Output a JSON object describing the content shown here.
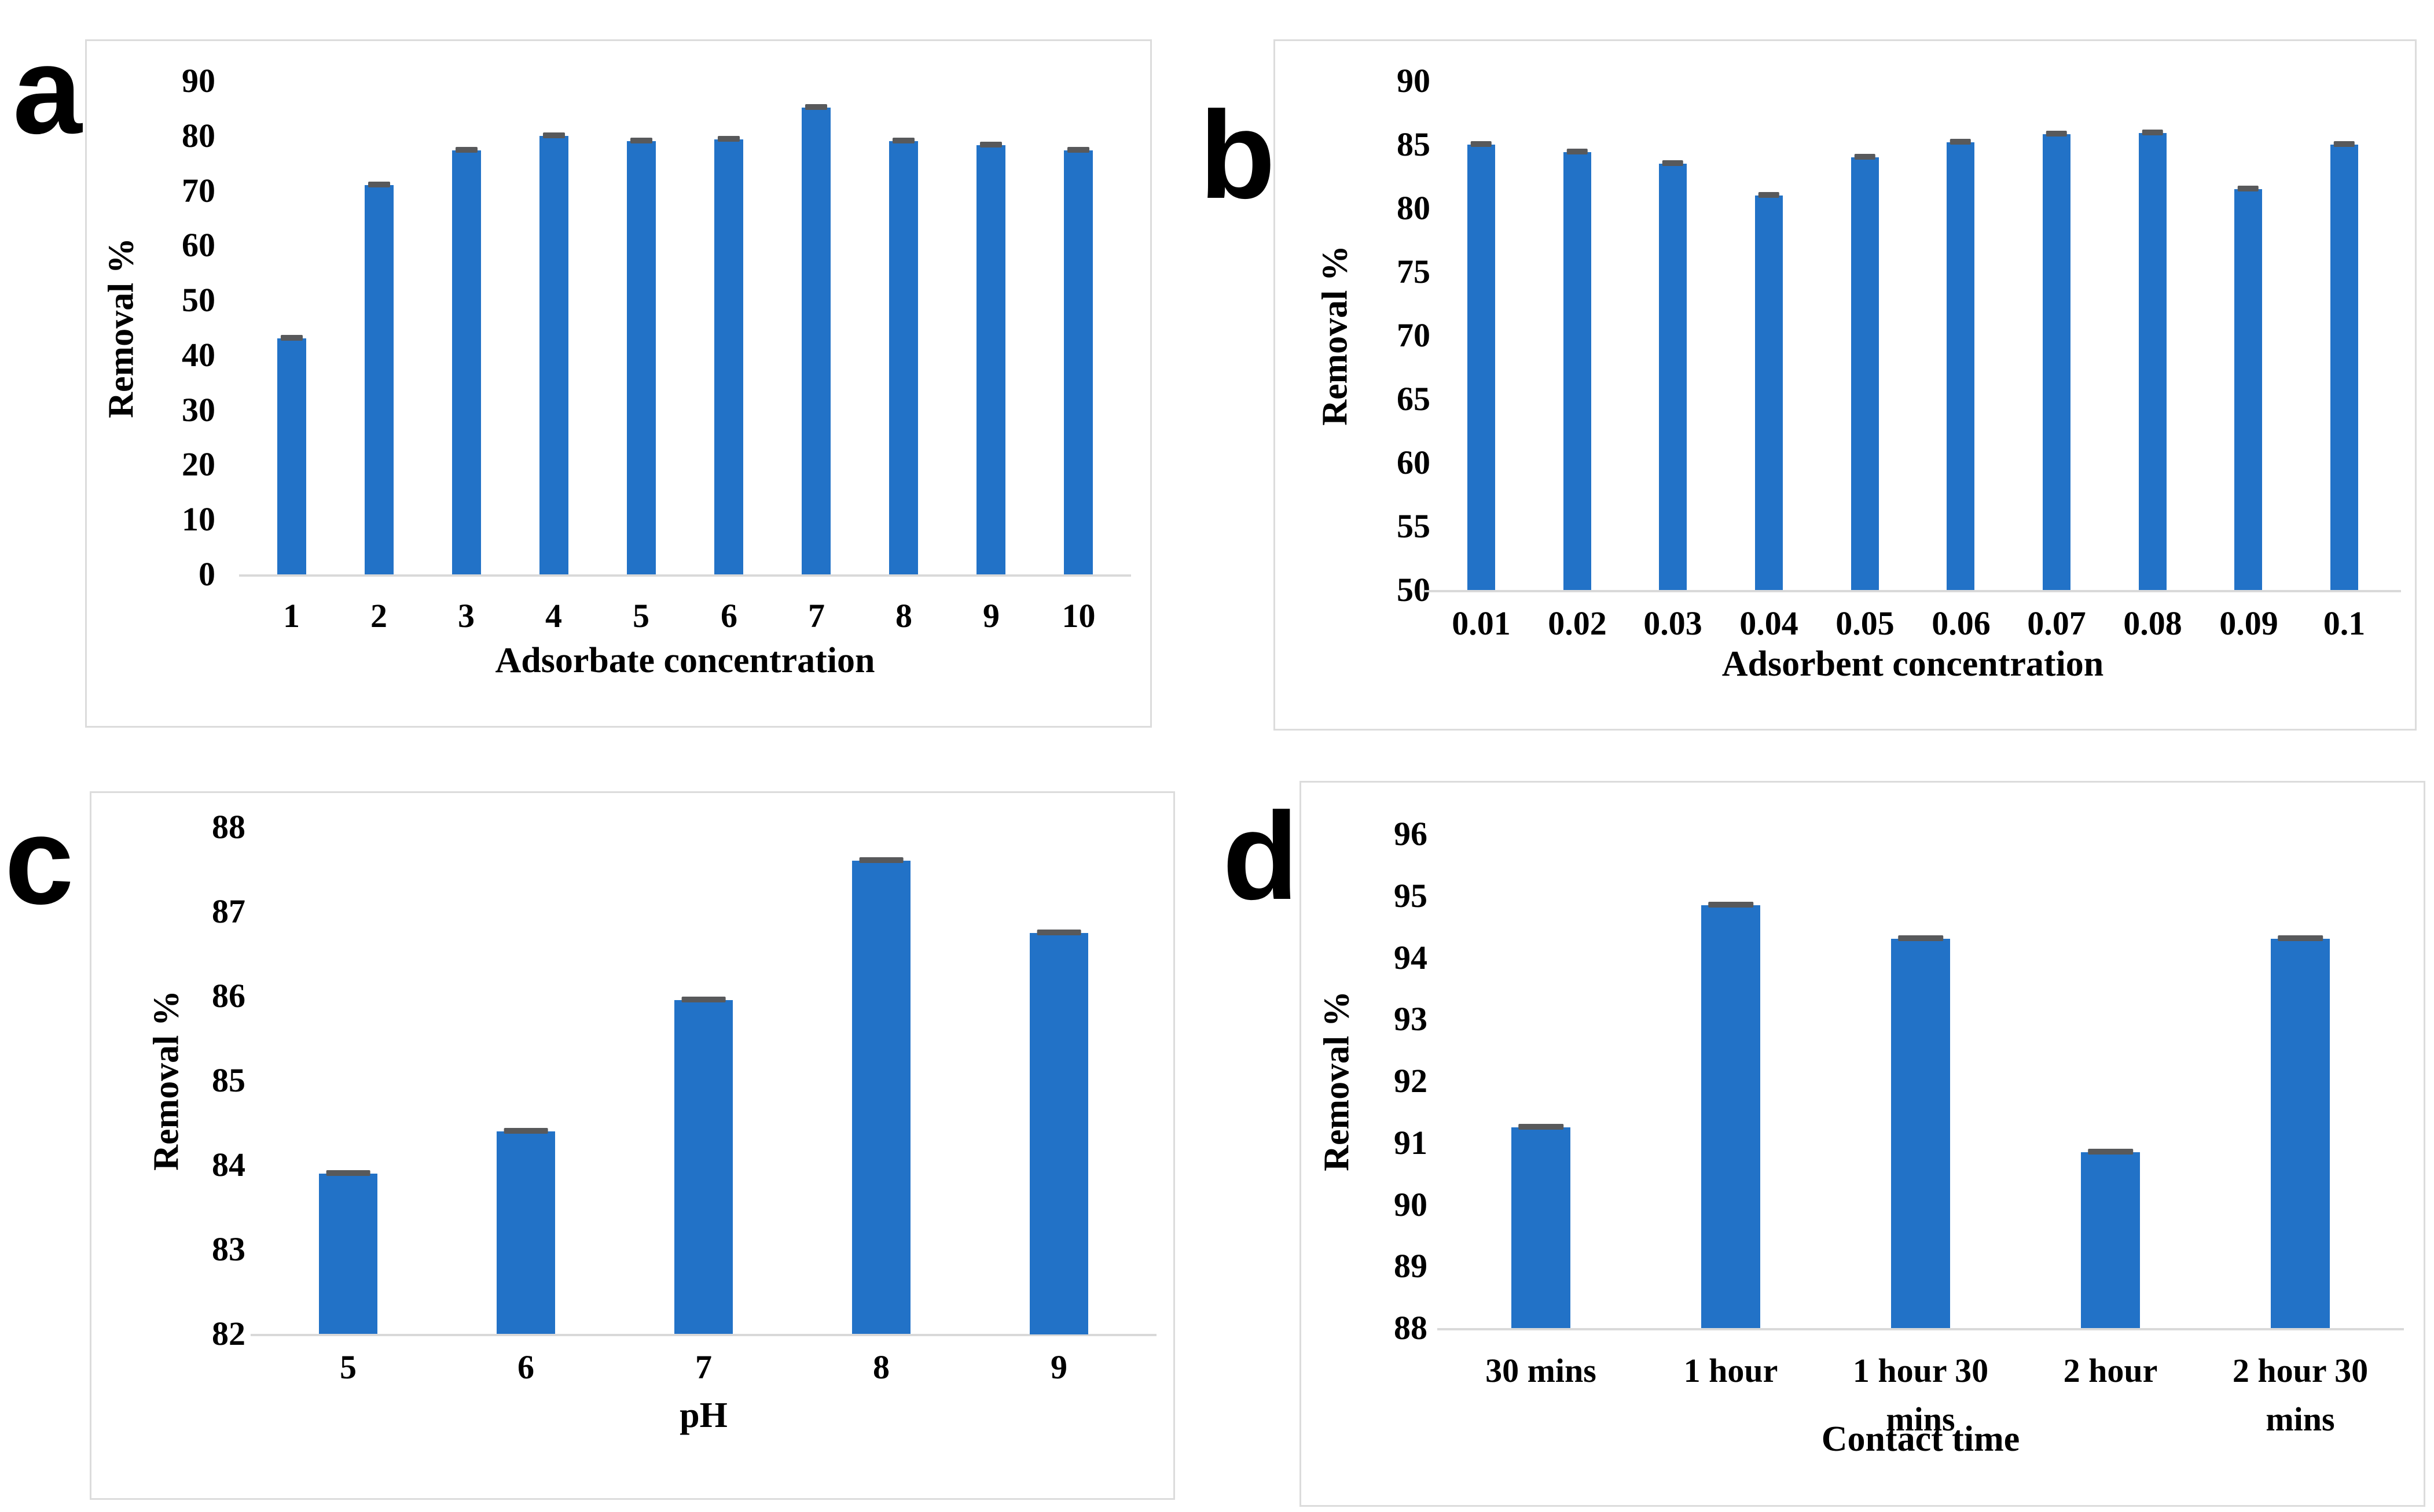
{
  "colors": {
    "bar_fill": "#2272C7",
    "error_cap": "#58595B",
    "axis_line": "#D9D9D9",
    "panel_border": "#DCDCDC",
    "text": "#000000",
    "background": "#FFFFFF"
  },
  "chart_data": [
    {
      "type": "bar",
      "panel": "a",
      "title": "",
      "xlabel": "Adsorbate concentration",
      "ylabel": "Removal %",
      "categories": [
        "1",
        "2",
        "3",
        "4",
        "5",
        "6",
        "7",
        "8",
        "9",
        "10"
      ],
      "values": [
        43,
        71,
        77.3,
        80,
        79,
        79.3,
        85.1,
        79,
        78.3,
        77.3
      ],
      "ylim": [
        0,
        90
      ],
      "ystep": 10,
      "error_caps": true,
      "grid": false,
      "legend": false
    },
    {
      "type": "bar",
      "panel": "b",
      "title": "",
      "xlabel": "Adsorbent concentration",
      "ylabel": "Removal %",
      "categories": [
        "0.01",
        "0.02",
        "0.03",
        "0.04",
        "0.05",
        "0.06",
        "0.07",
        "0.08",
        "0.09",
        "0.1"
      ],
      "values": [
        85,
        84.4,
        83.5,
        81,
        84,
        85.2,
        85.8,
        85.9,
        81.5,
        85
      ],
      "ylim": [
        50,
        90
      ],
      "ystep": 5,
      "error_caps": true,
      "grid": false,
      "legend": false
    },
    {
      "type": "bar",
      "panel": "c",
      "title": "",
      "xlabel": "pH",
      "ylabel": "Removal %",
      "categories": [
        "5",
        "6",
        "7",
        "8",
        "9"
      ],
      "values": [
        83.9,
        84.4,
        85.95,
        87.6,
        86.75
      ],
      "ylim": [
        82,
        88
      ],
      "ystep": 1,
      "error_caps": true,
      "grid": false,
      "legend": false
    },
    {
      "type": "bar",
      "panel": "d",
      "title": "",
      "xlabel": "Contact time",
      "ylabel": "Removal %",
      "categories": [
        "30 mins",
        "1 hour",
        "1 hour 30\nmins",
        "2 hour",
        "2 hour 30\nmins"
      ],
      "values": [
        91.25,
        94.85,
        94.3,
        90.85,
        94.3
      ],
      "ylim": [
        88,
        96
      ],
      "ystep": 1,
      "error_caps": true,
      "grid": false,
      "legend": false
    }
  ]
}
